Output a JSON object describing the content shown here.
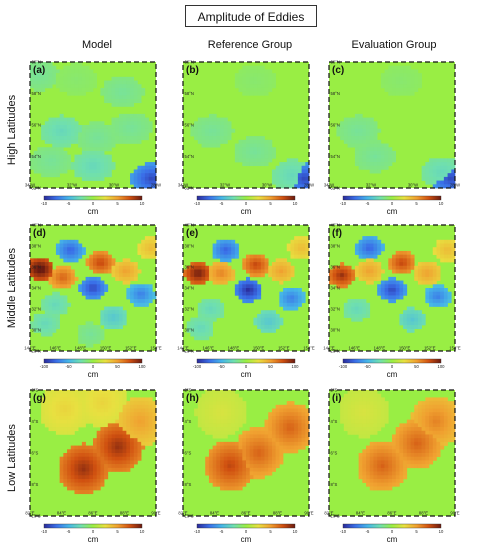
{
  "title": "Amplitude of Eddies",
  "columns": [
    "Model",
    "Reference Group",
    "Evaluation Group"
  ],
  "rows": [
    "High Latitudes",
    "Middle Latitudes",
    "Low Latitudes"
  ],
  "colors": {
    "background_field": "#99ee44",
    "colormap": [
      "#2a2a9a",
      "#3a6ee8",
      "#45b5e8",
      "#6fdfb0",
      "#99ee44",
      "#e8e040",
      "#f0a030",
      "#d05010",
      "#6a1a10"
    ]
  },
  "chart_data": [
    {
      "type": "heatmap",
      "panel": "(a)",
      "row": "High Latitudes",
      "column": "Model",
      "xticks": [
        "34°W",
        "32°W",
        "30°W",
        "28°W"
      ],
      "yticks": [
        "60°N",
        "58°N",
        "56°N",
        "54°N",
        "52°N"
      ],
      "colorbar": {
        "ticks": [
          "-10",
          "-5",
          "0",
          "5",
          "10"
        ],
        "unit": "cm",
        "range": [
          -10,
          10
        ]
      },
      "eddies": [
        {
          "lon": -33.6,
          "lat": 59.2,
          "amplitude_cm": -2
        },
        {
          "lon": -31.8,
          "lat": 58.9,
          "amplitude_cm": -1
        },
        {
          "lon": -29.6,
          "lat": 58.1,
          "amplitude_cm": -2
        },
        {
          "lon": -32.5,
          "lat": 55.6,
          "amplitude_cm": -3
        },
        {
          "lon": -30.8,
          "lat": 55.2,
          "amplitude_cm": -2
        },
        {
          "lon": -29.2,
          "lat": 55.8,
          "amplitude_cm": -2
        },
        {
          "lon": -33.0,
          "lat": 53.7,
          "amplitude_cm": -2
        },
        {
          "lon": -31.0,
          "lat": 53.4,
          "amplitude_cm": -3
        },
        {
          "lon": -28.2,
          "lat": 52.6,
          "amplitude_cm": -9
        }
      ]
    },
    {
      "type": "heatmap",
      "panel": "(b)",
      "row": "High Latitudes",
      "column": "Reference Group",
      "xticks": [
        "34°W",
        "32°W",
        "30°W",
        "28°W"
      ],
      "yticks": [
        "60°N",
        "58°N",
        "56°N",
        "54°N",
        "52°N"
      ],
      "colorbar": {
        "ticks": [
          "-10",
          "-5",
          "0",
          "5",
          "10"
        ],
        "unit": "cm",
        "range": [
          -10,
          10
        ]
      },
      "eddies": [
        {
          "lon": -30.6,
          "lat": 58.8,
          "amplitude_cm": -1
        },
        {
          "lon": -32.6,
          "lat": 55.6,
          "amplitude_cm": -2
        },
        {
          "lon": -30.6,
          "lat": 54.3,
          "amplitude_cm": -2
        },
        {
          "lon": -28.8,
          "lat": 52.8,
          "amplitude_cm": -3
        },
        {
          "lon": -28.2,
          "lat": 52.6,
          "amplitude_cm": -9
        }
      ]
    },
    {
      "type": "heatmap",
      "panel": "(c)",
      "row": "High Latitudes",
      "column": "Evaluation Group",
      "xticks": [
        "34°W",
        "32°W",
        "30°W",
        "28°W"
      ],
      "yticks": [
        "60°N",
        "58°N",
        "56°N",
        "54°N",
        "52°N"
      ],
      "colorbar": {
        "ticks": [
          "-10",
          "-5",
          "0",
          "5",
          "10"
        ],
        "unit": "cm",
        "range": [
          -10,
          10
        ]
      },
      "eddies": [
        {
          "lon": -30.6,
          "lat": 58.8,
          "amplitude_cm": -1
        },
        {
          "lon": -32.6,
          "lat": 55.6,
          "amplitude_cm": -2
        },
        {
          "lon": -31.8,
          "lat": 54.0,
          "amplitude_cm": -2
        },
        {
          "lon": -28.6,
          "lat": 53.0,
          "amplitude_cm": -3
        },
        {
          "lon": -28.2,
          "lat": 52.6,
          "amplitude_cm": -9
        }
      ]
    },
    {
      "type": "heatmap",
      "panel": "(d)",
      "row": "Middle Latitudes",
      "column": "Model",
      "xticks": [
        "144°E",
        "146°E",
        "148°E",
        "150°E",
        "152°E",
        "154°E"
      ],
      "yticks": [
        "40°N",
        "38°N",
        "36°N",
        "34°N",
        "32°N",
        "30°N",
        "28°N"
      ],
      "colorbar": {
        "ticks": [
          "-100",
          "-50",
          "0",
          "50",
          "100"
        ],
        "unit": "cm",
        "range": [
          -100,
          100
        ]
      },
      "eddies": [
        {
          "lon": 147.2,
          "lat": 37.6,
          "amplitude_cm": -80
        },
        {
          "lon": 144.8,
          "lat": 35.8,
          "amplitude_cm": 110
        },
        {
          "lon": 146.6,
          "lat": 35.0,
          "amplitude_cm": 70
        },
        {
          "lon": 149.6,
          "lat": 36.4,
          "amplitude_cm": 80
        },
        {
          "lon": 149.0,
          "lat": 34.0,
          "amplitude_cm": -90
        },
        {
          "lon": 151.6,
          "lat": 35.6,
          "amplitude_cm": 50
        },
        {
          "lon": 153.6,
          "lat": 37.8,
          "amplitude_cm": 40
        },
        {
          "lon": 152.8,
          "lat": 33.4,
          "amplitude_cm": -70
        },
        {
          "lon": 146.0,
          "lat": 32.4,
          "amplitude_cm": -30
        },
        {
          "lon": 150.6,
          "lat": 31.2,
          "amplitude_cm": -40
        },
        {
          "lon": 145.2,
          "lat": 30.6,
          "amplitude_cm": -30
        },
        {
          "lon": 148.8,
          "lat": 29.6,
          "amplitude_cm": -20
        }
      ]
    },
    {
      "type": "heatmap",
      "panel": "(e)",
      "row": "Middle Latitudes",
      "column": "Reference Group",
      "xticks": [
        "144°E",
        "146°E",
        "148°E",
        "150°E",
        "152°E",
        "154°E"
      ],
      "yticks": [
        "40°N",
        "38°N",
        "36°N",
        "34°N",
        "32°N",
        "30°N",
        "28°N"
      ],
      "colorbar": {
        "ticks": [
          "-100",
          "-50",
          "0",
          "50",
          "100"
        ],
        "unit": "cm",
        "range": [
          -100,
          100
        ]
      },
      "eddies": [
        {
          "lon": 147.4,
          "lat": 37.6,
          "amplitude_cm": -80
        },
        {
          "lon": 145.2,
          "lat": 35.4,
          "amplitude_cm": 100
        },
        {
          "lon": 147.0,
          "lat": 35.4,
          "amplitude_cm": 60
        },
        {
          "lon": 149.8,
          "lat": 36.2,
          "amplitude_cm": 80
        },
        {
          "lon": 149.2,
          "lat": 33.8,
          "amplitude_cm": -100
        },
        {
          "lon": 151.8,
          "lat": 35.6,
          "amplitude_cm": 50
        },
        {
          "lon": 153.4,
          "lat": 37.8,
          "amplitude_cm": 40
        },
        {
          "lon": 152.6,
          "lat": 33.0,
          "amplitude_cm": -70
        },
        {
          "lon": 146.2,
          "lat": 32.0,
          "amplitude_cm": -30
        },
        {
          "lon": 150.8,
          "lat": 30.8,
          "amplitude_cm": -40
        },
        {
          "lon": 145.4,
          "lat": 30.2,
          "amplitude_cm": -30
        }
      ]
    },
    {
      "type": "heatmap",
      "panel": "(f)",
      "row": "Middle Latitudes",
      "column": "Evaluation Group",
      "xticks": [
        "144°E",
        "146°E",
        "148°E",
        "150°E",
        "152°E",
        "154°E"
      ],
      "yticks": [
        "40°N",
        "38°N",
        "36°N",
        "34°N",
        "32°N",
        "30°N",
        "28°N"
      ],
      "colorbar": {
        "ticks": [
          "-100",
          "-50",
          "0",
          "50",
          "100"
        ],
        "unit": "cm",
        "range": [
          -100,
          100
        ]
      },
      "eddies": [
        {
          "lon": 147.2,
          "lat": 37.8,
          "amplitude_cm": -80
        },
        {
          "lon": 145.0,
          "lat": 35.2,
          "amplitude_cm": 90
        },
        {
          "lon": 147.2,
          "lat": 35.6,
          "amplitude_cm": 50
        },
        {
          "lon": 149.8,
          "lat": 36.4,
          "amplitude_cm": 80
        },
        {
          "lon": 149.0,
          "lat": 33.8,
          "amplitude_cm": -90
        },
        {
          "lon": 151.8,
          "lat": 35.4,
          "amplitude_cm": 50
        },
        {
          "lon": 153.4,
          "lat": 37.6,
          "amplitude_cm": 40
        },
        {
          "lon": 152.6,
          "lat": 33.2,
          "amplitude_cm": -70
        },
        {
          "lon": 146.2,
          "lat": 32.0,
          "amplitude_cm": -30
        },
        {
          "lon": 150.6,
          "lat": 31.0,
          "amplitude_cm": -40
        }
      ]
    },
    {
      "type": "heatmap",
      "panel": "(g)",
      "row": "Low Latitudes",
      "column": "Model",
      "xticks": [
        "82°E",
        "84°E",
        "86°E",
        "88°E",
        "90°E"
      ],
      "yticks": [
        "2°S",
        "4°S",
        "6°S",
        "8°S",
        "10°S"
      ],
      "colorbar": {
        "ticks": [
          "-10",
          "-5",
          "0",
          "5",
          "10"
        ],
        "unit": "cm",
        "range": [
          -10,
          10
        ]
      },
      "eddies": [
        {
          "lon": 85.4,
          "lat": -7.0,
          "amplitude_cm": 9
        },
        {
          "lon": 87.6,
          "lat": -5.6,
          "amplitude_cm": 9
        },
        {
          "lon": 84.2,
          "lat": -3.2,
          "amplitude_cm": 3
        },
        {
          "lon": 86.6,
          "lat": -2.8,
          "amplitude_cm": 3
        },
        {
          "lon": 89.0,
          "lat": -4.0,
          "amplitude_cm": 5
        }
      ]
    },
    {
      "type": "heatmap",
      "panel": "(h)",
      "row": "Low Latitudes",
      "column": "Reference Group",
      "xticks": [
        "82°E",
        "84°E",
        "86°E",
        "88°E",
        "90°E"
      ],
      "yticks": [
        "2°S",
        "4°S",
        "6°S",
        "8°S",
        "10°S"
      ],
      "colorbar": {
        "ticks": [
          "-10",
          "-5",
          "0",
          "5",
          "10"
        ],
        "unit": "cm",
        "range": [
          -10,
          10
        ]
      },
      "eddies": [
        {
          "lon": 85.0,
          "lat": -6.8,
          "amplitude_cm": 8
        },
        {
          "lon": 86.8,
          "lat": -6.0,
          "amplitude_cm": 7
        },
        {
          "lon": 88.8,
          "lat": -4.4,
          "amplitude_cm": 7
        },
        {
          "lon": 84.4,
          "lat": -3.4,
          "amplitude_cm": 2
        }
      ]
    },
    {
      "type": "heatmap",
      "panel": "(i)",
      "row": "Low Latitudes",
      "column": "Evaluation Group",
      "xticks": [
        "82°E",
        "84°E",
        "86°E",
        "88°E",
        "90°E"
      ],
      "yticks": [
        "2°S",
        "4°S",
        "6°S",
        "8°S",
        "10°S"
      ],
      "colorbar": {
        "ticks": [
          "-10",
          "-5",
          "0",
          "5",
          "10"
        ],
        "unit": "cm",
        "range": [
          -10,
          10
        ]
      },
      "eddies": [
        {
          "lon": 85.4,
          "lat": -6.8,
          "amplitude_cm": 7
        },
        {
          "lon": 87.6,
          "lat": -5.4,
          "amplitude_cm": 7
        },
        {
          "lon": 88.8,
          "lat": -4.0,
          "amplitude_cm": 6
        },
        {
          "lon": 84.2,
          "lat": -3.4,
          "amplitude_cm": 2
        }
      ]
    }
  ]
}
